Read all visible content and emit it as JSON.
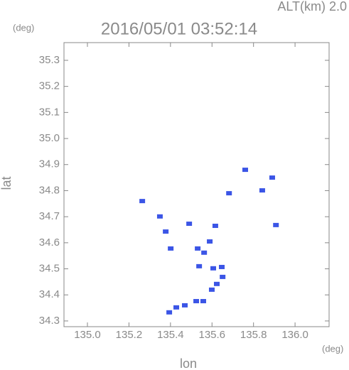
{
  "chart_data": {
    "type": "scatter",
    "title": "2016/05/01 03:52:14",
    "subtitle": "ALT(km) 2.0",
    "xlabel": "lon",
    "ylabel": "lat",
    "x_unit": "(deg)",
    "y_unit": "(deg)",
    "color": "#3b55e6",
    "x": [
      135.264,
      135.394,
      135.428,
      135.469,
      135.524,
      135.558,
      135.599,
      135.623,
      135.651,
      135.538,
      135.562,
      135.531,
      135.589,
      135.616,
      135.377,
      135.349,
      135.49,
      135.76,
      135.842,
      135.908,
      135.682,
      135.401,
      135.606,
      135.647,
      135.89
    ],
    "values": [
      34.76,
      34.333,
      34.352,
      34.36,
      34.376,
      34.376,
      34.42,
      34.442,
      34.469,
      34.51,
      34.562,
      34.578,
      34.605,
      34.665,
      34.643,
      34.701,
      34.673,
      34.88,
      34.801,
      34.668,
      34.79,
      34.578,
      34.502,
      34.507,
      34.85
    ],
    "xlim": [
      134.887,
      136.164
    ],
    "ylim": [
      34.278,
      35.368
    ],
    "xticks": [
      {
        "value": 135,
        "label": "135.0"
      },
      135.2,
      135.4,
      135.6,
      135.8,
      {
        "value": 136,
        "label": "136.0"
      }
    ],
    "yticks": [
      34.3,
      34.4,
      34.5,
      34.6,
      34.7,
      34.8,
      34.9,
      {
        "value": 35,
        "label": "35.0"
      },
      35.1,
      35.2,
      35.3
    ]
  }
}
